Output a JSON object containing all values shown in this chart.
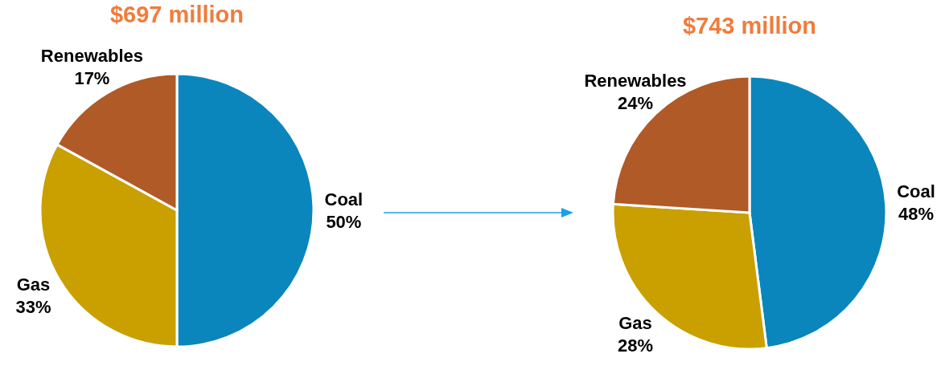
{
  "chart_data": [
    {
      "type": "pie",
      "title": "$697 million",
      "categories": [
        "Coal",
        "Gas",
        "Renewables"
      ],
      "values": [
        50,
        33,
        17
      ],
      "value_labels": [
        "50%",
        "33%",
        "17%"
      ],
      "colors": [
        "#0a86bd",
        "#c9a000",
        "#b05a28"
      ]
    },
    {
      "type": "pie",
      "title": "$743 million",
      "categories": [
        "Coal",
        "Gas",
        "Renewables"
      ],
      "values": [
        48,
        28,
        24
      ],
      "value_labels": [
        "48%",
        "28%",
        "24%"
      ],
      "colors": [
        "#0a86bd",
        "#c9a000",
        "#b05a28"
      ]
    }
  ]
}
